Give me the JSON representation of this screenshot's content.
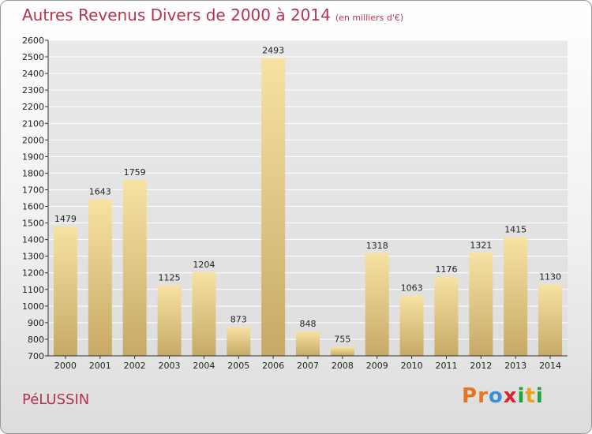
{
  "header": {
    "title": "Autres Revenus Divers de 2000 à 2014",
    "subtitle": "(en milliers d'€)"
  },
  "footer": {
    "commune": "PéLUSSIN",
    "logo_letters": [
      {
        "ch": "P",
        "color": "#e8741e"
      },
      {
        "ch": "r",
        "color": "#e8741e"
      },
      {
        "ch": "o",
        "color": "#3b8fd6"
      },
      {
        "ch": "x",
        "color": "#d6262d"
      },
      {
        "ch": "i",
        "color": "#1fa13b"
      },
      {
        "ch": "t",
        "color": "#e8a21e"
      },
      {
        "ch": "i",
        "color": "#1fa13b"
      }
    ]
  },
  "chart_data": {
    "type": "bar",
    "title": "Autres Revenus Divers de 2000 à 2014",
    "subtitle": "(en milliers d'€)",
    "categories": [
      "2000",
      "2001",
      "2002",
      "2003",
      "2004",
      "2005",
      "2006",
      "2007",
      "2008",
      "2009",
      "2010",
      "2011",
      "2012",
      "2013",
      "2014"
    ],
    "values": [
      1479,
      1643,
      1759,
      1125,
      1204,
      873,
      2493,
      848,
      755,
      1318,
      1063,
      1176,
      1321,
      1415,
      1130
    ],
    "ylim": [
      700,
      2600
    ],
    "yticks": [
      700,
      800,
      900,
      1000,
      1100,
      1200,
      1300,
      1400,
      1500,
      1600,
      1700,
      1800,
      1900,
      2000,
      2100,
      2200,
      2300,
      2400,
      2500,
      2600
    ],
    "grid": true,
    "colors": {
      "bar_light": "#f5dc98",
      "bar_dark": "#c9ac6a",
      "grid": "#ffffff",
      "axis": "#333333"
    }
  }
}
